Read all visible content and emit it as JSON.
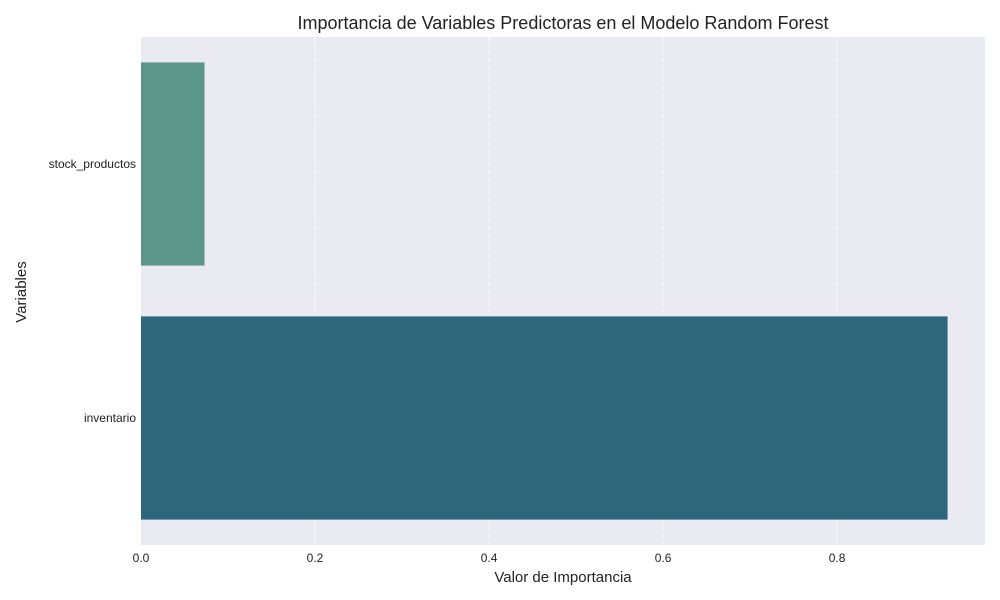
{
  "chart_data": {
    "type": "bar",
    "orientation": "horizontal",
    "title": "Importancia de Variables Predictoras en el Modelo Random Forest",
    "xlabel": "Valor de Importancia",
    "ylabel": "Variables",
    "categories": [
      "stock_productos",
      "inventario"
    ],
    "values": [
      0.073,
      0.927
    ],
    "colors": [
      "#5c958a",
      "#2e677c"
    ],
    "xlim": [
      0,
      0.97
    ],
    "xticks": [
      0.0,
      0.2,
      0.4,
      0.6,
      0.8
    ],
    "xtick_labels": [
      "0.0",
      "0.2",
      "0.4",
      "0.6",
      "0.8"
    ],
    "grid": true,
    "grid_axis": "x",
    "background_color": "#eaeaf2"
  }
}
